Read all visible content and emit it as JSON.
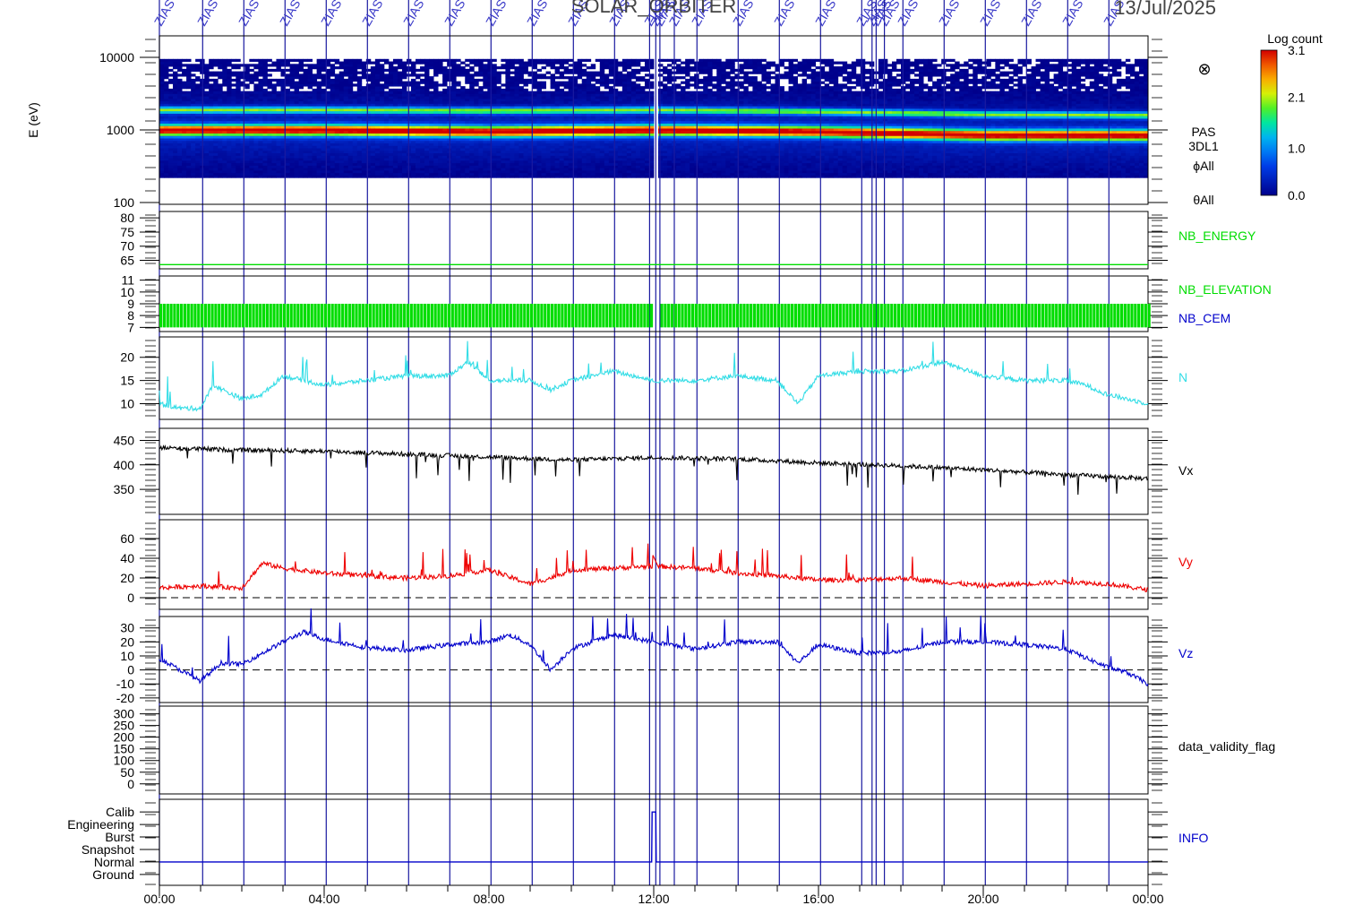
{
  "page": {
    "title": "SOLAR_ORBITER",
    "date": "13/Jul/2025",
    "marker_label": "ZIAS",
    "overlap_label": "ZIAS"
  },
  "chart_data": {
    "type": "line",
    "time_axis": {
      "range_hours": [
        0,
        24
      ],
      "tick_labels": [
        "00:00",
        "04:00",
        "08:00",
        "12:00",
        "16:00",
        "20:00",
        "00:00"
      ],
      "tick_hours": [
        0,
        4,
        8,
        12,
        16,
        20,
        24
      ]
    },
    "event_markers_hours": [
      0.0,
      1.05,
      2.05,
      3.05,
      4.05,
      5.05,
      6.05,
      7.05,
      8.05,
      9.05,
      10.05,
      11.05,
      11.9,
      12.05,
      12.15,
      12.5,
      13.05,
      14.05,
      15.05,
      16.05,
      17.05,
      17.3,
      17.4,
      17.6,
      18.05,
      19.05,
      20.05,
      21.05,
      22.05,
      23.05
    ],
    "panels": [
      {
        "id": "spectrogram",
        "type": "heatmap",
        "ylabel": "E (eV)",
        "yscale": "log",
        "ylim": [
          100,
          10000
        ],
        "ytick_labels": [
          "100",
          "1000",
          "10000"
        ],
        "ytick_values": [
          100,
          1000,
          10000
        ],
        "side_labels": [
          "PAS",
          "3DL1",
          "ϕAll",
          "θAll"
        ],
        "symbol": "⊗",
        "colorbar": {
          "title": "Log count",
          "range": [
            0.0,
            3.1
          ],
          "tick_labels": [
            "3.1",
            "2.1",
            "1.0",
            "0.0"
          ],
          "tick_values": [
            3.1,
            2.1,
            1.0,
            0.0
          ]
        },
        "peak_energy_eV": {
          "hours": [
            0,
            4,
            8,
            12,
            16,
            20,
            24
          ],
          "values": [
            1000,
            1000,
            950,
            1000,
            950,
            850,
            850
          ]
        },
        "alpha_energy_eV": {
          "hours": [
            0,
            4,
            8,
            12,
            16,
            20,
            24
          ],
          "values": [
            1900,
            1900,
            1850,
            1900,
            1800,
            1650,
            1600
          ]
        }
      },
      {
        "id": "nb_energy",
        "ytick_labels": [
          "65",
          "70",
          "75",
          "80"
        ],
        "ytick_values": [
          65,
          70,
          75,
          80
        ],
        "ylim": [
          62,
          81
        ],
        "series": [
          {
            "name": "NB_ENERGY",
            "color": "#00dd00",
            "x": [
              0,
              24
            ],
            "values": [
              63.5,
              63.5
            ]
          }
        ]
      },
      {
        "id": "nb_elevation_cem",
        "ytick_labels": [
          "7",
          "8",
          "9",
          "10",
          "11"
        ],
        "ytick_values": [
          7,
          8,
          9,
          10,
          11
        ],
        "ylim": [
          6.8,
          11.2
        ],
        "series": [
          {
            "name": "NB_ELEVATION",
            "color": "#00dd00",
            "band": [
              7,
              9
            ]
          },
          {
            "name": "NB_CEM",
            "color": "#0000cc"
          }
        ]
      },
      {
        "id": "density",
        "ytick_labels": [
          "10",
          "15",
          "20"
        ],
        "ytick_values": [
          10,
          15,
          20
        ],
        "ylim": [
          7,
          24
        ],
        "series": [
          {
            "name": "N",
            "color": "#33dde6",
            "x": [
              0,
              0.5,
              1,
              1.3,
              2,
              2.5,
              3,
              3.5,
              4,
              5,
              6,
              7,
              7.5,
              8,
              9,
              9.5,
              10,
              11,
              12,
              13,
              14,
              15,
              15.5,
              16,
              17,
              18,
              19,
              20,
              21,
              22,
              22.5,
              23,
              23.5,
              24
            ],
            "values": [
              10,
              9,
              9,
              14,
              11,
              12,
              16,
              15,
              14,
              15,
              16,
              16,
              19,
              15,
              15,
              13,
              15,
              17,
              15,
              15,
              16,
              15,
              10,
              16,
              17,
              17,
              19,
              16,
              15,
              15,
              14,
              12,
              11,
              10
            ]
          }
        ]
      },
      {
        "id": "vx",
        "ytick_labels": [
          "350",
          "400",
          "450"
        ],
        "ytick_values": [
          350,
          400,
          450
        ],
        "ylim": [
          310,
          460
        ],
        "series": [
          {
            "name": "Vx",
            "color": "#000000",
            "x": [
              0,
              2,
              4,
              6,
              8,
              10,
              12,
              14,
              16,
              18,
              20,
              22,
              24
            ],
            "values": [
              435,
              430,
              428,
              422,
              416,
              410,
              415,
              412,
              404,
              398,
              390,
              380,
              372
            ]
          }
        ]
      },
      {
        "id": "vy",
        "ytick_labels": [
          "0",
          "20",
          "40",
          "60"
        ],
        "ytick_values": [
          0,
          20,
          40,
          60
        ],
        "ylim": [
          -10,
          70
        ],
        "zero_line": true,
        "series": [
          {
            "name": "Vy",
            "color": "#ee0000",
            "x": [
              0,
              1,
              2,
              2.5,
              3,
              4,
              5,
              6,
              7,
              8,
              9,
              9.5,
              10,
              11,
              12,
              13,
              14,
              15,
              16,
              17,
              18,
              19,
              20,
              21,
              22,
              23,
              24
            ],
            "values": [
              10,
              12,
              10,
              35,
              30,
              25,
              22,
              20,
              22,
              28,
              14,
              20,
              28,
              30,
              32,
              30,
              25,
              22,
              18,
              18,
              20,
              16,
              12,
              14,
              16,
              14,
              8
            ]
          }
        ]
      },
      {
        "id": "vz",
        "ytick_labels": [
          "-20",
          "-10",
          "0",
          "10",
          "20",
          "30"
        ],
        "ytick_values": [
          -20,
          -10,
          0,
          10,
          20,
          30
        ],
        "ylim": [
          -22,
          33
        ],
        "zero_line": true,
        "series": [
          {
            "name": "Vz",
            "color": "#0000cc",
            "x": [
              0,
              1,
              1.5,
              2,
              3,
              3.5,
              4,
              5,
              6,
              7,
              8,
              8.5,
              9,
              9.5,
              10,
              11,
              12,
              13,
              14,
              15,
              15.5,
              16,
              17,
              18,
              19,
              20,
              21,
              22,
              23,
              23.5,
              24
            ],
            "values": [
              8,
              -8,
              5,
              4,
              20,
              27,
              22,
              16,
              14,
              18,
              20,
              25,
              18,
              0,
              15,
              25,
              20,
              15,
              20,
              20,
              5,
              18,
              12,
              13,
              20,
              20,
              18,
              15,
              2,
              -2,
              -10
            ]
          }
        ]
      },
      {
        "id": "validity",
        "ytick_labels": [
          "0",
          "50",
          "100",
          "150",
          "200",
          "250",
          "300"
        ],
        "ytick_values": [
          0,
          50,
          100,
          150,
          200,
          250,
          300
        ],
        "ylim": [
          -20,
          310
        ],
        "series": [
          {
            "name": "data_validity_flag",
            "color": "#000000"
          }
        ]
      },
      {
        "id": "info",
        "ytick_labels": [
          "Ground",
          "Normal",
          "Snapshot",
          "Burst",
          "Engineering",
          "Calib"
        ],
        "ytick_values": [
          0,
          1,
          2,
          3,
          4,
          5
        ],
        "ylim": [
          -0.3,
          5.3
        ],
        "series": [
          {
            "name": "INFO",
            "color": "#0000cc",
            "x": [
              0,
              11.95,
              11.96,
              12.05,
              12.06,
              24
            ],
            "values": [
              1,
              1,
              5,
              5,
              1,
              1
            ]
          }
        ]
      }
    ]
  }
}
